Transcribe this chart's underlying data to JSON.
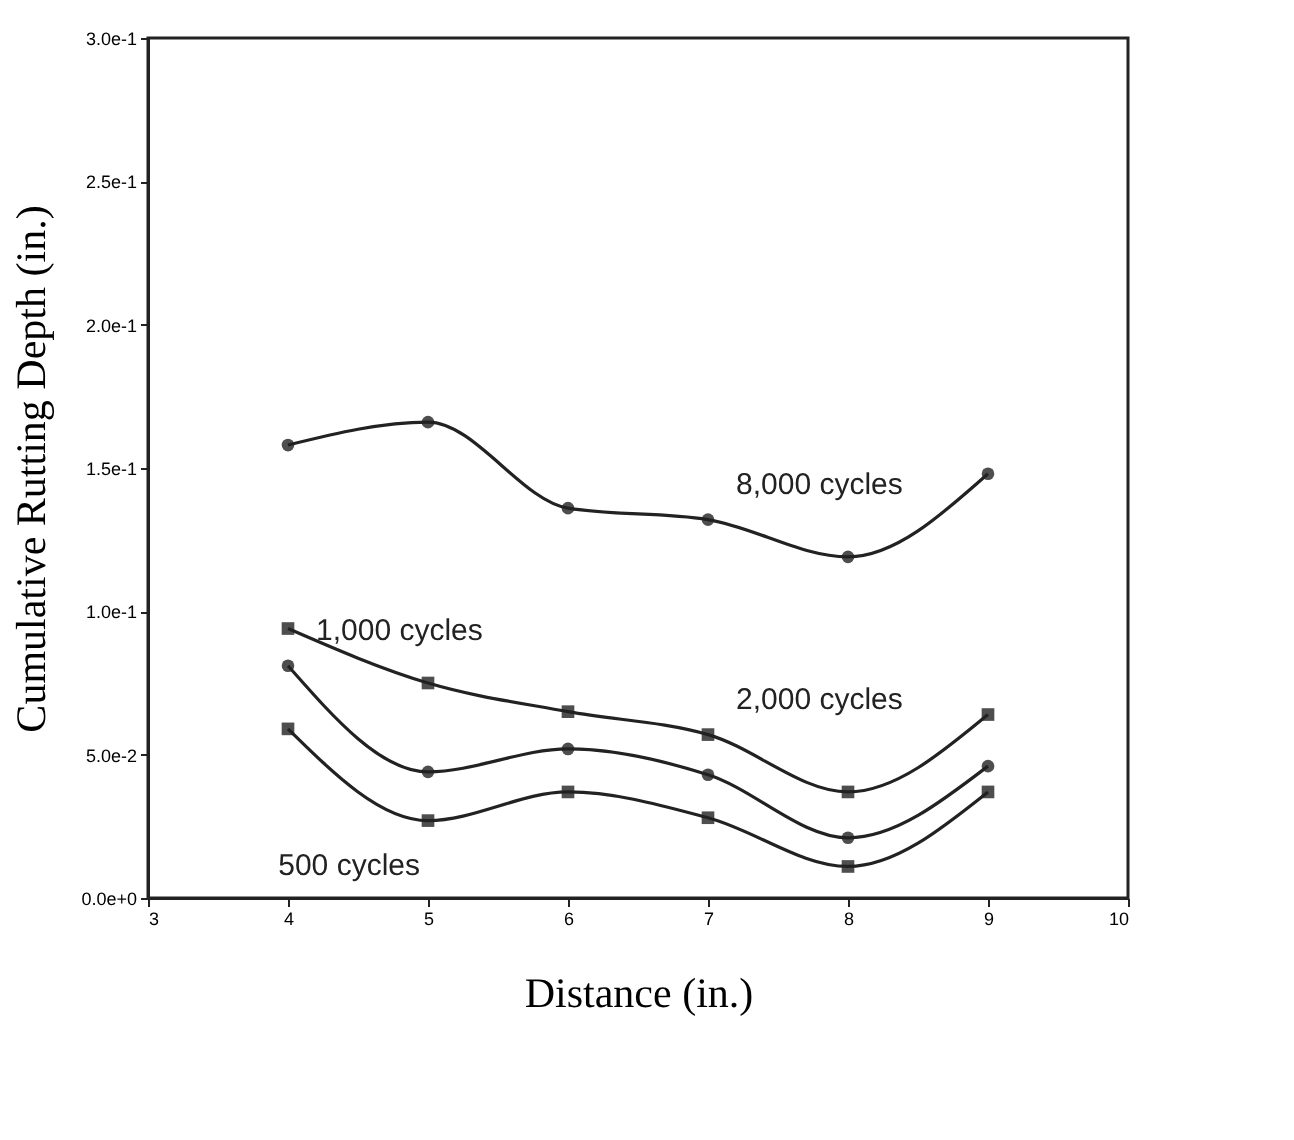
{
  "chart_data": {
    "type": "line",
    "xlabel": "Distance (in.)",
    "ylabel": "Cumulative Rutting Depth (in.)",
    "x": [
      4,
      5,
      6,
      7,
      8,
      9
    ],
    "series": [
      {
        "color": "#222222",
        "marker": "circle",
        "values": [
          0.158,
          0.166,
          0.136,
          0.132,
          0.119,
          0.148
        ]
      },
      {
        "color": "#222222",
        "marker": "square",
        "values": [
          0.094,
          0.075,
          0.065,
          0.057,
          0.037,
          0.064
        ]
      },
      {
        "color": "#222222",
        "marker": "circle",
        "values": [
          0.081,
          0.044,
          0.052,
          0.043,
          0.021,
          0.046
        ]
      },
      {
        "color": "#222222",
        "marker": "square",
        "values": [
          0.059,
          0.027,
          0.037,
          0.028,
          0.011,
          0.037
        ]
      }
    ],
    "annotations": [
      {
        "text": "8,000  cycles",
        "x": 7,
        "y": 0.132
      },
      {
        "text": "2,000  cycles",
        "x": 7,
        "y": 0.057
      },
      {
        "text": "1,000  cycles",
        "x": 4,
        "y": 0.081
      },
      {
        "text": "500  cycles",
        "x": 5,
        "y": 0.027
      }
    ],
    "xlim": [
      3,
      10
    ],
    "xticks": [
      3,
      4,
      5,
      6,
      7,
      8,
      9,
      10
    ],
    "ylim": [
      0,
      0.3
    ],
    "yticks": [
      {
        "value": 0,
        "label": "0.0e+0"
      },
      {
        "value": 0.05,
        "label": "5.0e-2"
      },
      {
        "value": 0.1,
        "label": "1.0e-1"
      },
      {
        "value": 0.15,
        "label": "1.5e-1"
      },
      {
        "value": 0.2,
        "label": "2.0e-1"
      },
      {
        "value": 0.25,
        "label": "2.5e-1"
      },
      {
        "value": 0.3,
        "label": "3.0e-1"
      }
    ],
    "grid": false,
    "line_style": "solid"
  }
}
